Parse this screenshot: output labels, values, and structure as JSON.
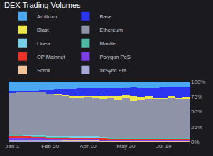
{
  "chart_data": {
    "type": "bar",
    "title": "DEX Trading Volumes",
    "stacked": true,
    "grid": true,
    "legend": "top",
    "categories": [
      "Jan 1",
      null,
      null,
      null,
      null,
      "Feb 20",
      null,
      null,
      null,
      null,
      "Apr 10",
      null,
      null,
      null,
      null,
      "May 30",
      null,
      null,
      null,
      null,
      "Jul 19",
      null,
      null,
      null
    ],
    "ylim": [
      0,
      100
    ],
    "yticks": [
      {
        "value": 0,
        "label": "0%"
      },
      {
        "value": 25,
        "label": "25%"
      },
      {
        "value": 50,
        "label": "50%"
      },
      {
        "value": 75,
        "label": "75%"
      },
      {
        "value": 100,
        "label": "100%"
      }
    ],
    "series": [
      {
        "name": "Arbitrum",
        "color": "#4aa8f0",
        "values": [
          16,
          15,
          15,
          15,
          14,
          14,
          13,
          12,
          12,
          11,
          11,
          11,
          11,
          11,
          10,
          10,
          9,
          10,
          10,
          10,
          9,
          9,
          9,
          9
        ]
      },
      {
        "name": "Base",
        "color": "#2b35f2",
        "values": [
          2,
          2,
          3,
          3,
          4,
          6,
          8,
          10,
          12,
          14,
          12,
          13,
          14,
          12,
          14,
          12,
          15,
          16,
          15,
          17,
          18,
          16,
          18,
          17
        ]
      },
      {
        "name": "Blast",
        "color": "#eee64a",
        "values": [
          0,
          0,
          0,
          0,
          0,
          0,
          0.5,
          1,
          2,
          2,
          2,
          2,
          3,
          4,
          6,
          5,
          8,
          4,
          3,
          2,
          2,
          1.5,
          1.5,
          1.5
        ]
      },
      {
        "name": "Ethereum",
        "color": "#8e93a8",
        "values": [
          70,
          71,
          70.5,
          71,
          71.5,
          70,
          68.5,
          67,
          65,
          64,
          66,
          65,
          64,
          65.5,
          62.5,
          65.5,
          60.5,
          62.5,
          64.5,
          63.5,
          63.5,
          66,
          64,
          65
        ]
      },
      {
        "name": "Linea",
        "color": "#78cfe8",
        "values": [
          1,
          1,
          1,
          1,
          1,
          1,
          1,
          1,
          1,
          1,
          1,
          1,
          1,
          1,
          1,
          1,
          1,
          1,
          1,
          1,
          1,
          1,
          1,
          1
        ]
      },
      {
        "name": "Mantle",
        "color": "#4fb8a4",
        "values": [
          1,
          1,
          1,
          1,
          1,
          1,
          1,
          1,
          1,
          1,
          1,
          1,
          1,
          1,
          1,
          1,
          1,
          1,
          1,
          1,
          1,
          1,
          1,
          1
        ]
      },
      {
        "name": "OP Mainnet",
        "color": "#e8322a",
        "values": [
          4,
          4,
          3.5,
          3.5,
          3,
          3,
          3,
          3,
          2.5,
          2.5,
          2.5,
          2.5,
          2.5,
          2,
          2,
          2,
          2,
          2,
          2,
          2,
          2,
          2,
          2,
          2
        ]
      },
      {
        "name": "Polygon PoS",
        "color": "#7b3fe4",
        "values": [
          4,
          4,
          4,
          3.5,
          3.5,
          3,
          3,
          3,
          2.5,
          2.5,
          2.5,
          2.5,
          2,
          2,
          2,
          2,
          2,
          2,
          2,
          2,
          2,
          2,
          2,
          2
        ]
      },
      {
        "name": "Scroll",
        "color": "#f0c29a",
        "values": [
          0,
          0,
          0,
          0,
          0,
          0,
          0,
          0.5,
          0.5,
          0.5,
          0.5,
          0.5,
          0.5,
          0.5,
          0.5,
          0.5,
          0.5,
          0.5,
          0.5,
          0.5,
          0.5,
          0.5,
          0.5,
          0.5
        ]
      },
      {
        "name": "zkSync Era",
        "color": "#a6a8d8",
        "values": [
          2,
          2,
          2,
          2,
          2,
          2,
          2,
          1.5,
          1.5,
          1.5,
          1.5,
          1.5,
          1,
          1,
          1,
          1,
          1,
          1,
          1,
          1,
          1,
          1,
          1,
          1
        ]
      }
    ]
  }
}
